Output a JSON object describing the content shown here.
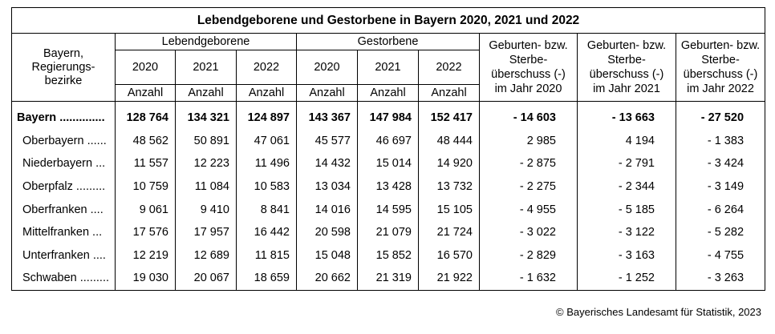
{
  "table": {
    "title": "Lebendgeborene und Gestorbene in Bayern 2020, 2021 und 2022",
    "region_header": [
      "Bayern,",
      "Regierungs-",
      "bezirke"
    ],
    "groups": {
      "births": "Lebendgeborene",
      "deaths": "Gestorbene"
    },
    "years": [
      "2020",
      "2021",
      "2022",
      "2020",
      "2021",
      "2022"
    ],
    "unit": "Anzahl",
    "balance_headers": [
      [
        "Geburten- bzw.",
        "Sterbe-",
        "überschuss (-)",
        "im Jahr 2020"
      ],
      [
        "Geburten- bzw.",
        "Sterbe-",
        "überschuss (-)",
        "im Jahr 2021"
      ],
      [
        "Geburten- bzw.",
        "Sterbe-",
        "überschuss (-)",
        "im Jahr 2022"
      ]
    ],
    "rows": [
      {
        "label": "Bayern ..............",
        "values": [
          "128 764",
          "134 321",
          "124 897",
          "143 367",
          "147 984",
          "152 417",
          "- 14 603",
          "- 13 663",
          "- 27 520"
        ]
      },
      {
        "label": "Oberbayern ......",
        "values": [
          "48 562",
          "50 891",
          "47 061",
          "45 577",
          "46 697",
          "48 444",
          "2 985",
          "4 194",
          "- 1 383"
        ]
      },
      {
        "label": "Niederbayern ...",
        "values": [
          "11 557",
          "12 223",
          "11 496",
          "14 432",
          "15 014",
          "14 920",
          "- 2 875",
          "- 2 791",
          "- 3 424"
        ]
      },
      {
        "label": "Oberpfalz .........",
        "values": [
          "10 759",
          "11 084",
          "10 583",
          "13 034",
          "13 428",
          "13 732",
          "- 2 275",
          "- 2 344",
          "- 3 149"
        ]
      },
      {
        "label": "Oberfranken ....",
        "values": [
          "9 061",
          "9 410",
          "8 841",
          "14 016",
          "14 595",
          "15 105",
          "- 4 955",
          "- 5 185",
          "- 6 264"
        ]
      },
      {
        "label": "Mittelfranken ...",
        "values": [
          "17 576",
          "17 957",
          "16 442",
          "20 598",
          "21 079",
          "21 724",
          "- 3 022",
          "- 3 122",
          "- 5 282"
        ]
      },
      {
        "label": "Unterfranken ....",
        "values": [
          "12 219",
          "12 689",
          "11 815",
          "15 048",
          "15 852",
          "16 570",
          "- 2 829",
          "- 3 163",
          "- 4 755"
        ]
      },
      {
        "label": "Schwaben .........",
        "values": [
          "19 030",
          "20 067",
          "18 659",
          "20 662",
          "21 319",
          "21 922",
          "- 1 632",
          "- 1 252",
          "- 3 263"
        ]
      }
    ]
  },
  "credit": "© Bayerisches Landesamt für Statistik, 2023"
}
